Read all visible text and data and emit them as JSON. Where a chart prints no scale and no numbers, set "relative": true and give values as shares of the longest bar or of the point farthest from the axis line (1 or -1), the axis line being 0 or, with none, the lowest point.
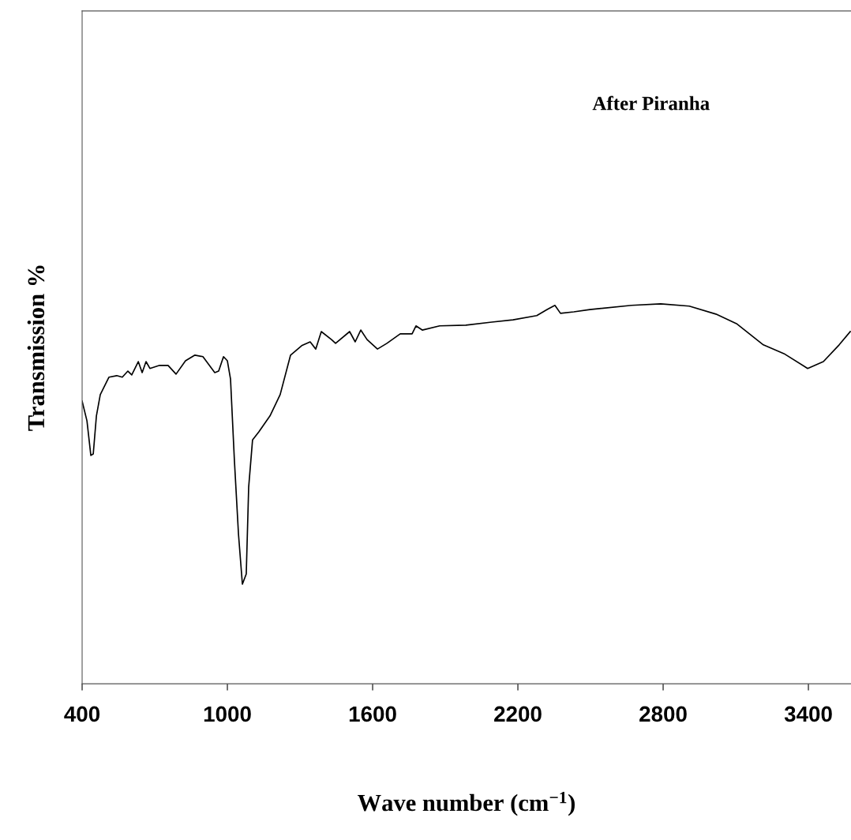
{
  "chart_data": {
    "type": "line",
    "relative": true,
    "xlabel": "Wave number (cm$^{−1}$)",
    "ylabel": "Transmission %",
    "annotations": [
      "After Piranha"
    ],
    "xlim": [
      400,
      3576
    ],
    "xticks": [
      400,
      1000,
      1600,
      2200,
      2800,
      3400
    ],
    "grid": false,
    "legend": false,
    "marker": "none",
    "line_style": "solid",
    "series": [
      {
        "color": "#000000",
        "x": [
          400,
          420,
          436,
          446,
          459,
          475,
          511,
          543,
          566,
          589,
          605,
          632,
          648,
          664,
          680,
          720,
          755,
          788,
          827,
          866,
          899,
          948,
          964,
          984,
          1000,
          1013,
          1029,
          1046,
          1062,
          1078,
          1088,
          1104,
          1130,
          1176,
          1218,
          1261,
          1307,
          1342,
          1365,
          1388,
          1430,
          1447,
          1505,
          1528,
          1551,
          1577,
          1620,
          1659,
          1714,
          1763,
          1779,
          1805,
          1877,
          1985,
          2092,
          2180,
          2278,
          2321,
          2353,
          2376,
          2431,
          2497,
          2670,
          2790,
          2908,
          3018,
          3103,
          3214,
          3299,
          3397,
          3462,
          3527,
          3573
        ],
        "values": [
          0.744,
          0.692,
          0.601,
          0.605,
          0.705,
          0.761,
          0.807,
          0.811,
          0.807,
          0.823,
          0.813,
          0.848,
          0.819,
          0.848,
          0.83,
          0.838,
          0.838,
          0.815,
          0.85,
          0.865,
          0.861,
          0.819,
          0.823,
          0.861,
          0.85,
          0.802,
          0.588,
          0.393,
          0.262,
          0.289,
          0.518,
          0.642,
          0.663,
          0.705,
          0.761,
          0.865,
          0.89,
          0.9,
          0.881,
          0.927,
          0.906,
          0.896,
          0.927,
          0.9,
          0.931,
          0.906,
          0.881,
          0.896,
          0.921,
          0.921,
          0.942,
          0.931,
          0.942,
          0.944,
          0.952,
          0.958,
          0.969,
          0.985,
          0.996,
          0.975,
          0.979,
          0.985,
          0.996,
          1.0,
          0.994,
          0.973,
          0.948,
          0.892,
          0.869,
          0.83,
          0.848,
          0.892,
          0.927
        ]
      }
    ]
  }
}
